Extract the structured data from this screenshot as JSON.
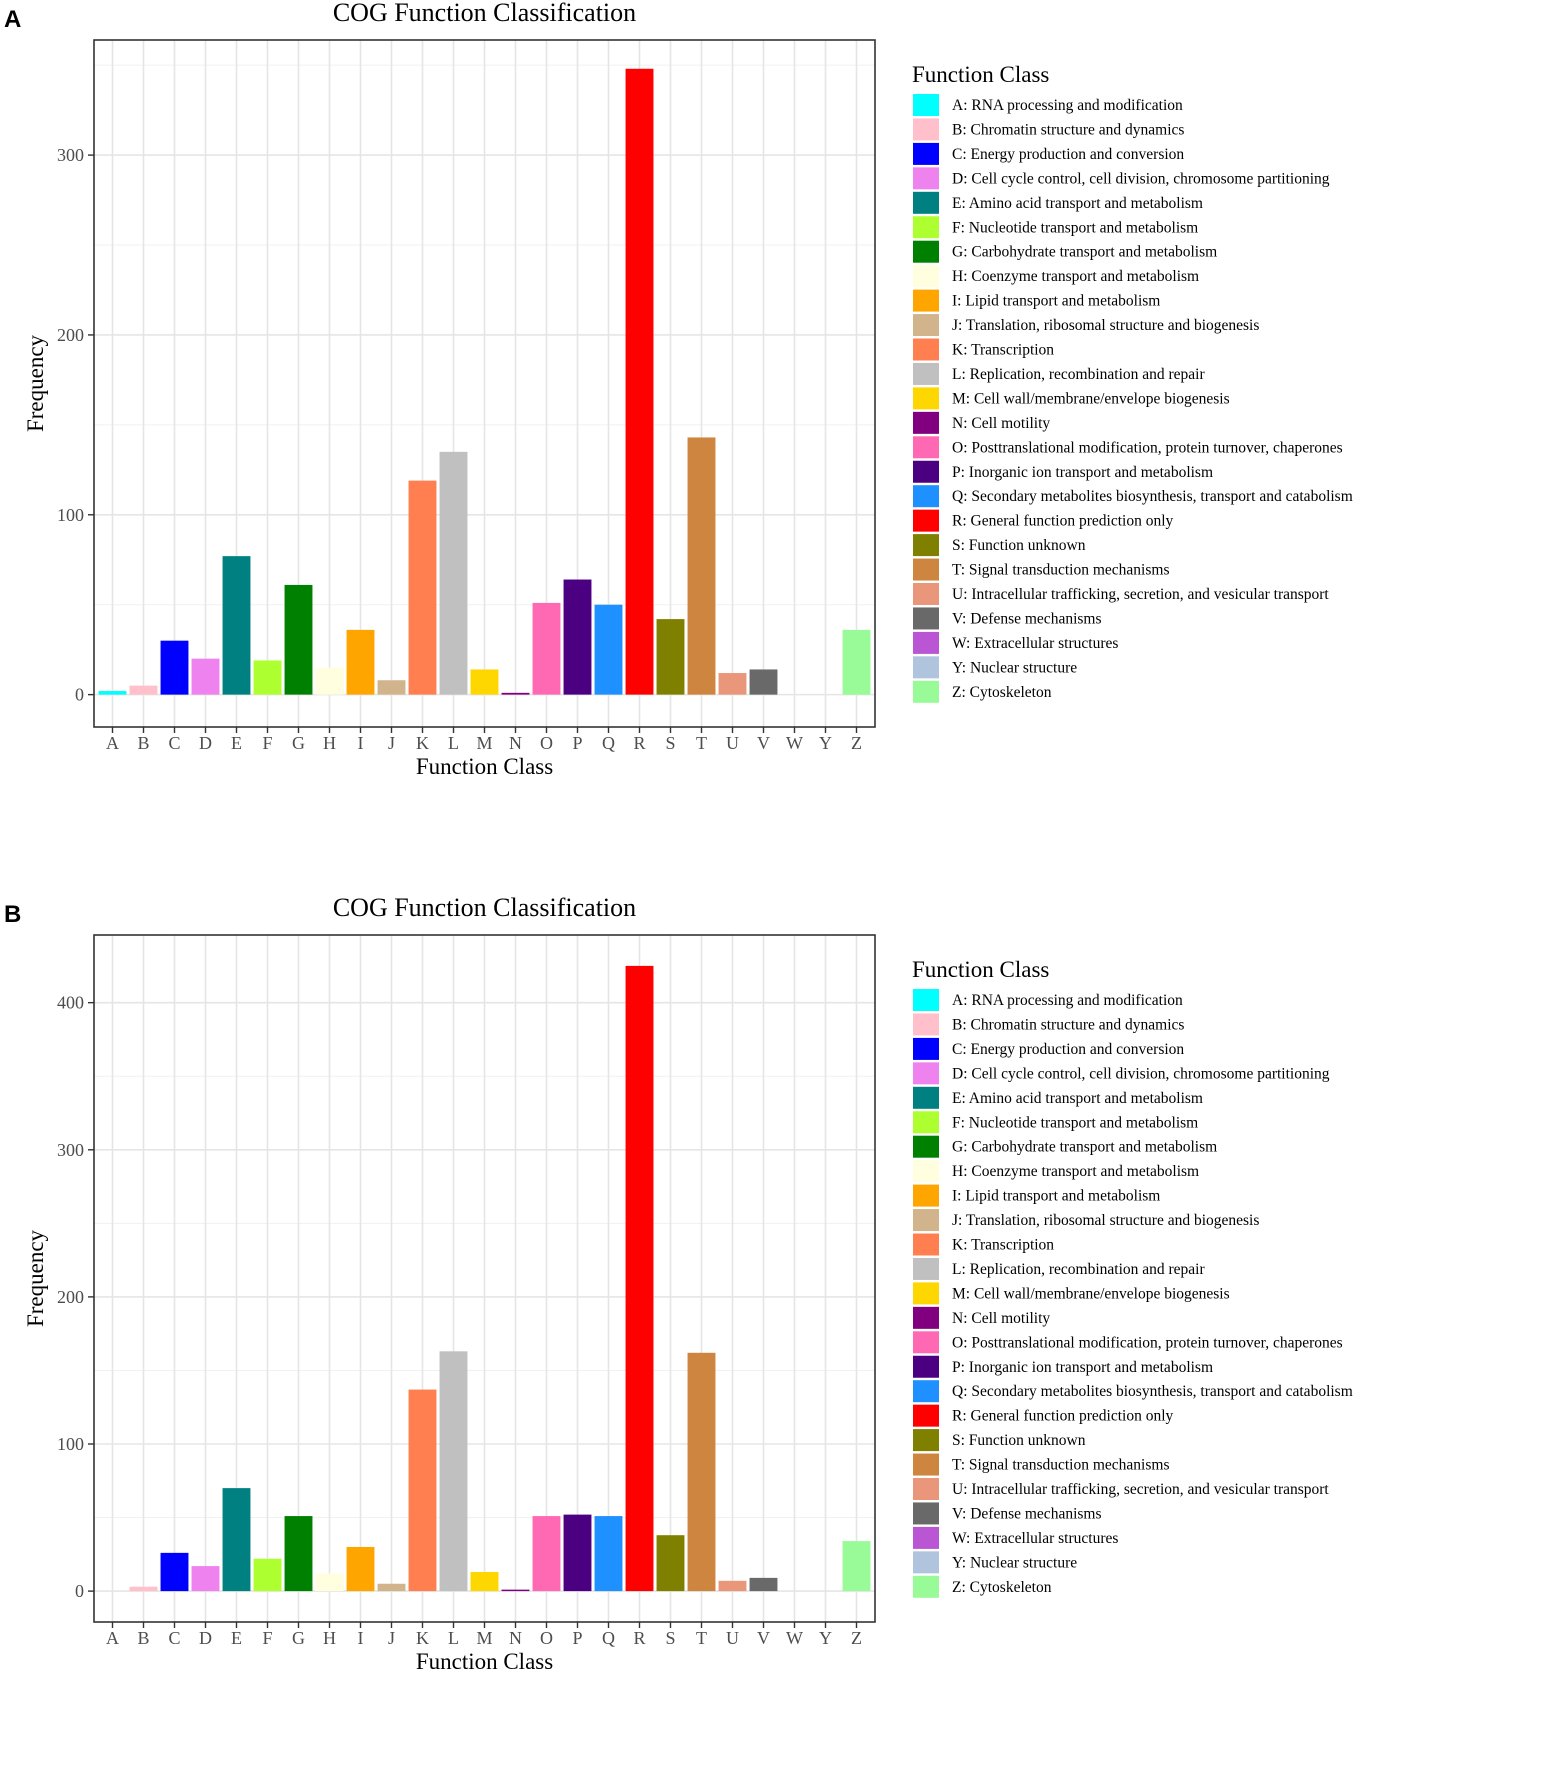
{
  "panels": [
    {
      "letter": "A",
      "chart_data": {
        "type": "bar",
        "title": "COG Function Classification",
        "xlabel": "Function Class",
        "ylabel": "Frequency",
        "ylim": [
          -18,
          364
        ],
        "yticks": [
          0,
          100,
          200,
          300
        ],
        "grid": true,
        "legend_position": "right",
        "legend_title": "Function Class",
        "categories": [
          "A",
          "B",
          "C",
          "D",
          "E",
          "F",
          "G",
          "H",
          "I",
          "J",
          "K",
          "L",
          "M",
          "N",
          "O",
          "P",
          "Q",
          "R",
          "S",
          "T",
          "U",
          "V",
          "W",
          "Y",
          "Z"
        ],
        "values": [
          2,
          5,
          30,
          20,
          77,
          19,
          61,
          15,
          36,
          8,
          119,
          135,
          14,
          1,
          51,
          64,
          50,
          348,
          42,
          143,
          12,
          14,
          0,
          0,
          36
        ]
      }
    },
    {
      "letter": "B",
      "chart_data": {
        "type": "bar",
        "title": "COG Function Classification",
        "xlabel": "Function Class",
        "ylabel": "Frequency",
        "ylim": [
          -21,
          446
        ],
        "yticks": [
          0,
          100,
          200,
          300,
          400
        ],
        "grid": true,
        "legend_position": "right",
        "legend_title": "Function Class",
        "categories": [
          "A",
          "B",
          "C",
          "D",
          "E",
          "F",
          "G",
          "H",
          "I",
          "J",
          "K",
          "L",
          "M",
          "N",
          "O",
          "P",
          "Q",
          "R",
          "S",
          "T",
          "U",
          "V",
          "W",
          "Y",
          "Z"
        ],
        "values": [
          0,
          3,
          26,
          17,
          70,
          22,
          51,
          12,
          30,
          5,
          137,
          163,
          13,
          1,
          51,
          52,
          51,
          425,
          38,
          162,
          7,
          9,
          0,
          0,
          34
        ]
      }
    }
  ],
  "legend_items": [
    {
      "code": "A",
      "label": "A: RNA processing and modification",
      "color": "#00FFFF"
    },
    {
      "code": "B",
      "label": "B: Chromatin structure and dynamics",
      "color": "#FFC0CB"
    },
    {
      "code": "C",
      "label": "C: Energy production and conversion",
      "color": "#0000FF"
    },
    {
      "code": "D",
      "label": "D: Cell cycle control, cell division, chromosome partitioning",
      "color": "#EE82EE"
    },
    {
      "code": "E",
      "label": "E: Amino acid transport and metabolism",
      "color": "#008080"
    },
    {
      "code": "F",
      "label": "F: Nucleotide transport and metabolism",
      "color": "#ADFF2F"
    },
    {
      "code": "G",
      "label": "G: Carbohydrate transport and metabolism",
      "color": "#008000"
    },
    {
      "code": "H",
      "label": "H: Coenzyme transport and metabolism",
      "color": "#FFFFE0"
    },
    {
      "code": "I",
      "label": "I: Lipid transport and metabolism",
      "color": "#FFA500"
    },
    {
      "code": "J",
      "label": "J: Translation, ribosomal structure and biogenesis",
      "color": "#D2B48C"
    },
    {
      "code": "K",
      "label": "K: Transcription",
      "color": "#FF7F50"
    },
    {
      "code": "L",
      "label": "L: Replication, recombination and repair",
      "color": "#C0C0C0"
    },
    {
      "code": "M",
      "label": "M: Cell wall/membrane/envelope biogenesis",
      "color": "#FFD700"
    },
    {
      "code": "N",
      "label": "N: Cell motility",
      "color": "#800080"
    },
    {
      "code": "O",
      "label": "O: Posttranslational modification, protein turnover, chaperones",
      "color": "#FF69B4"
    },
    {
      "code": "P",
      "label": "P: Inorganic ion transport and metabolism",
      "color": "#4B0082"
    },
    {
      "code": "Q",
      "label": "Q: Secondary metabolites biosynthesis, transport and catabolism",
      "color": "#1E90FF"
    },
    {
      "code": "R",
      "label": "R: General function prediction only",
      "color": "#FF0000"
    },
    {
      "code": "S",
      "label": "S: Function unknown",
      "color": "#808000"
    },
    {
      "code": "T",
      "label": "T: Signal transduction mechanisms",
      "color": "#CD853F"
    },
    {
      "code": "U",
      "label": "U: Intracellular trafficking, secretion, and vesicular transport",
      "color": "#E9967A"
    },
    {
      "code": "V",
      "label": "V: Defense mechanisms",
      "color": "#696969"
    },
    {
      "code": "W",
      "label": "W: Extracellular structures",
      "color": "#BA55D3"
    },
    {
      "code": "Y",
      "label": "Y: Nuclear structure",
      "color": "#B0C4DE"
    },
    {
      "code": "Z",
      "label": "Z: Cytoskeleton",
      "color": "#98FB98"
    }
  ]
}
